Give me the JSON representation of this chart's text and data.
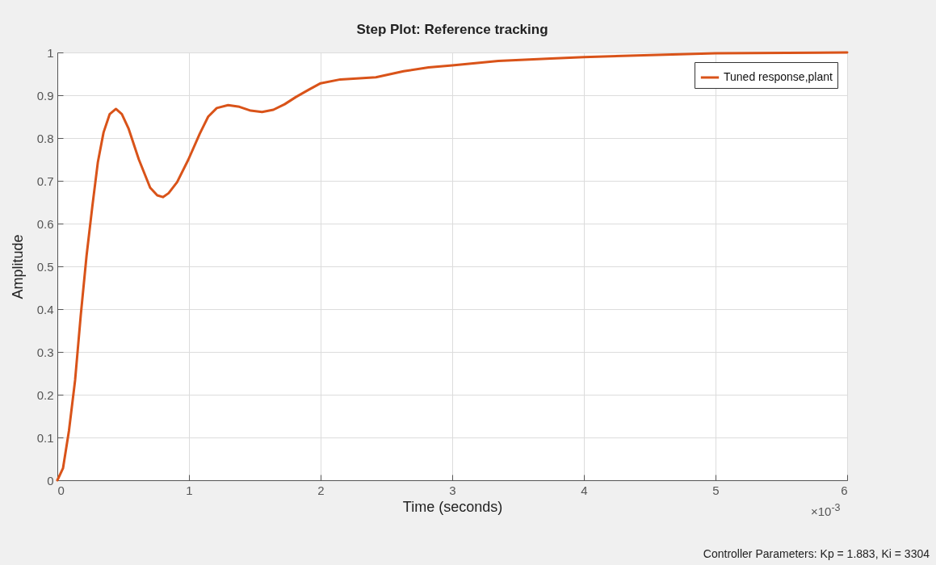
{
  "chart_data": {
    "type": "line",
    "title": "Step Plot: Reference tracking",
    "xlabel": "Time (seconds)",
    "ylabel": "Amplitude",
    "annotations": [
      "×10$^{-3}$",
      "Controller Parameters: Kp = 1.883, Ki = 3304"
    ],
    "series": [
      {
        "name": "Tuned response,plant",
        "color": "#d95319",
        "x": [
          0,
          0.043,
          0.088,
          0.135,
          0.178,
          0.222,
          0.265,
          0.308,
          0.351,
          0.398,
          0.445,
          0.49,
          0.54,
          0.619,
          0.705,
          0.759,
          0.802,
          0.845,
          0.91,
          0.996,
          1.082,
          1.146,
          1.211,
          1.297,
          1.383,
          1.469,
          1.555,
          1.641,
          1.727,
          1.813,
          1.91,
          2.0,
          2.15,
          2.42,
          2.63,
          2.82,
          3.0,
          3.35,
          3.75,
          4.0,
          4.4,
          5.0,
          6.0
        ],
        "values": [
          0,
          0.028,
          0.115,
          0.234,
          0.386,
          0.525,
          0.638,
          0.744,
          0.813,
          0.856,
          0.868,
          0.856,
          0.823,
          0.75,
          0.684,
          0.666,
          0.662,
          0.671,
          0.697,
          0.75,
          0.81,
          0.85,
          0.87,
          0.877,
          0.873,
          0.864,
          0.861,
          0.866,
          0.879,
          0.896,
          0.913,
          0.928,
          0.937,
          0.942,
          0.956,
          0.965,
          0.97,
          0.98,
          0.986,
          0.989,
          0.993,
          0.998,
          1.0
        ]
      }
    ],
    "xlim": [
      0,
      6
    ],
    "xticks": [
      0,
      1,
      2,
      3,
      4,
      5,
      6
    ],
    "ylim": [
      0,
      1
    ],
    "yticks": [
      0,
      0.1,
      0.2,
      0.3,
      0.4,
      0.5,
      0.6,
      0.7,
      0.8,
      0.9,
      1
    ],
    "grid": true,
    "legend": "top right",
    "line_style": "solid",
    "marker": "none"
  }
}
